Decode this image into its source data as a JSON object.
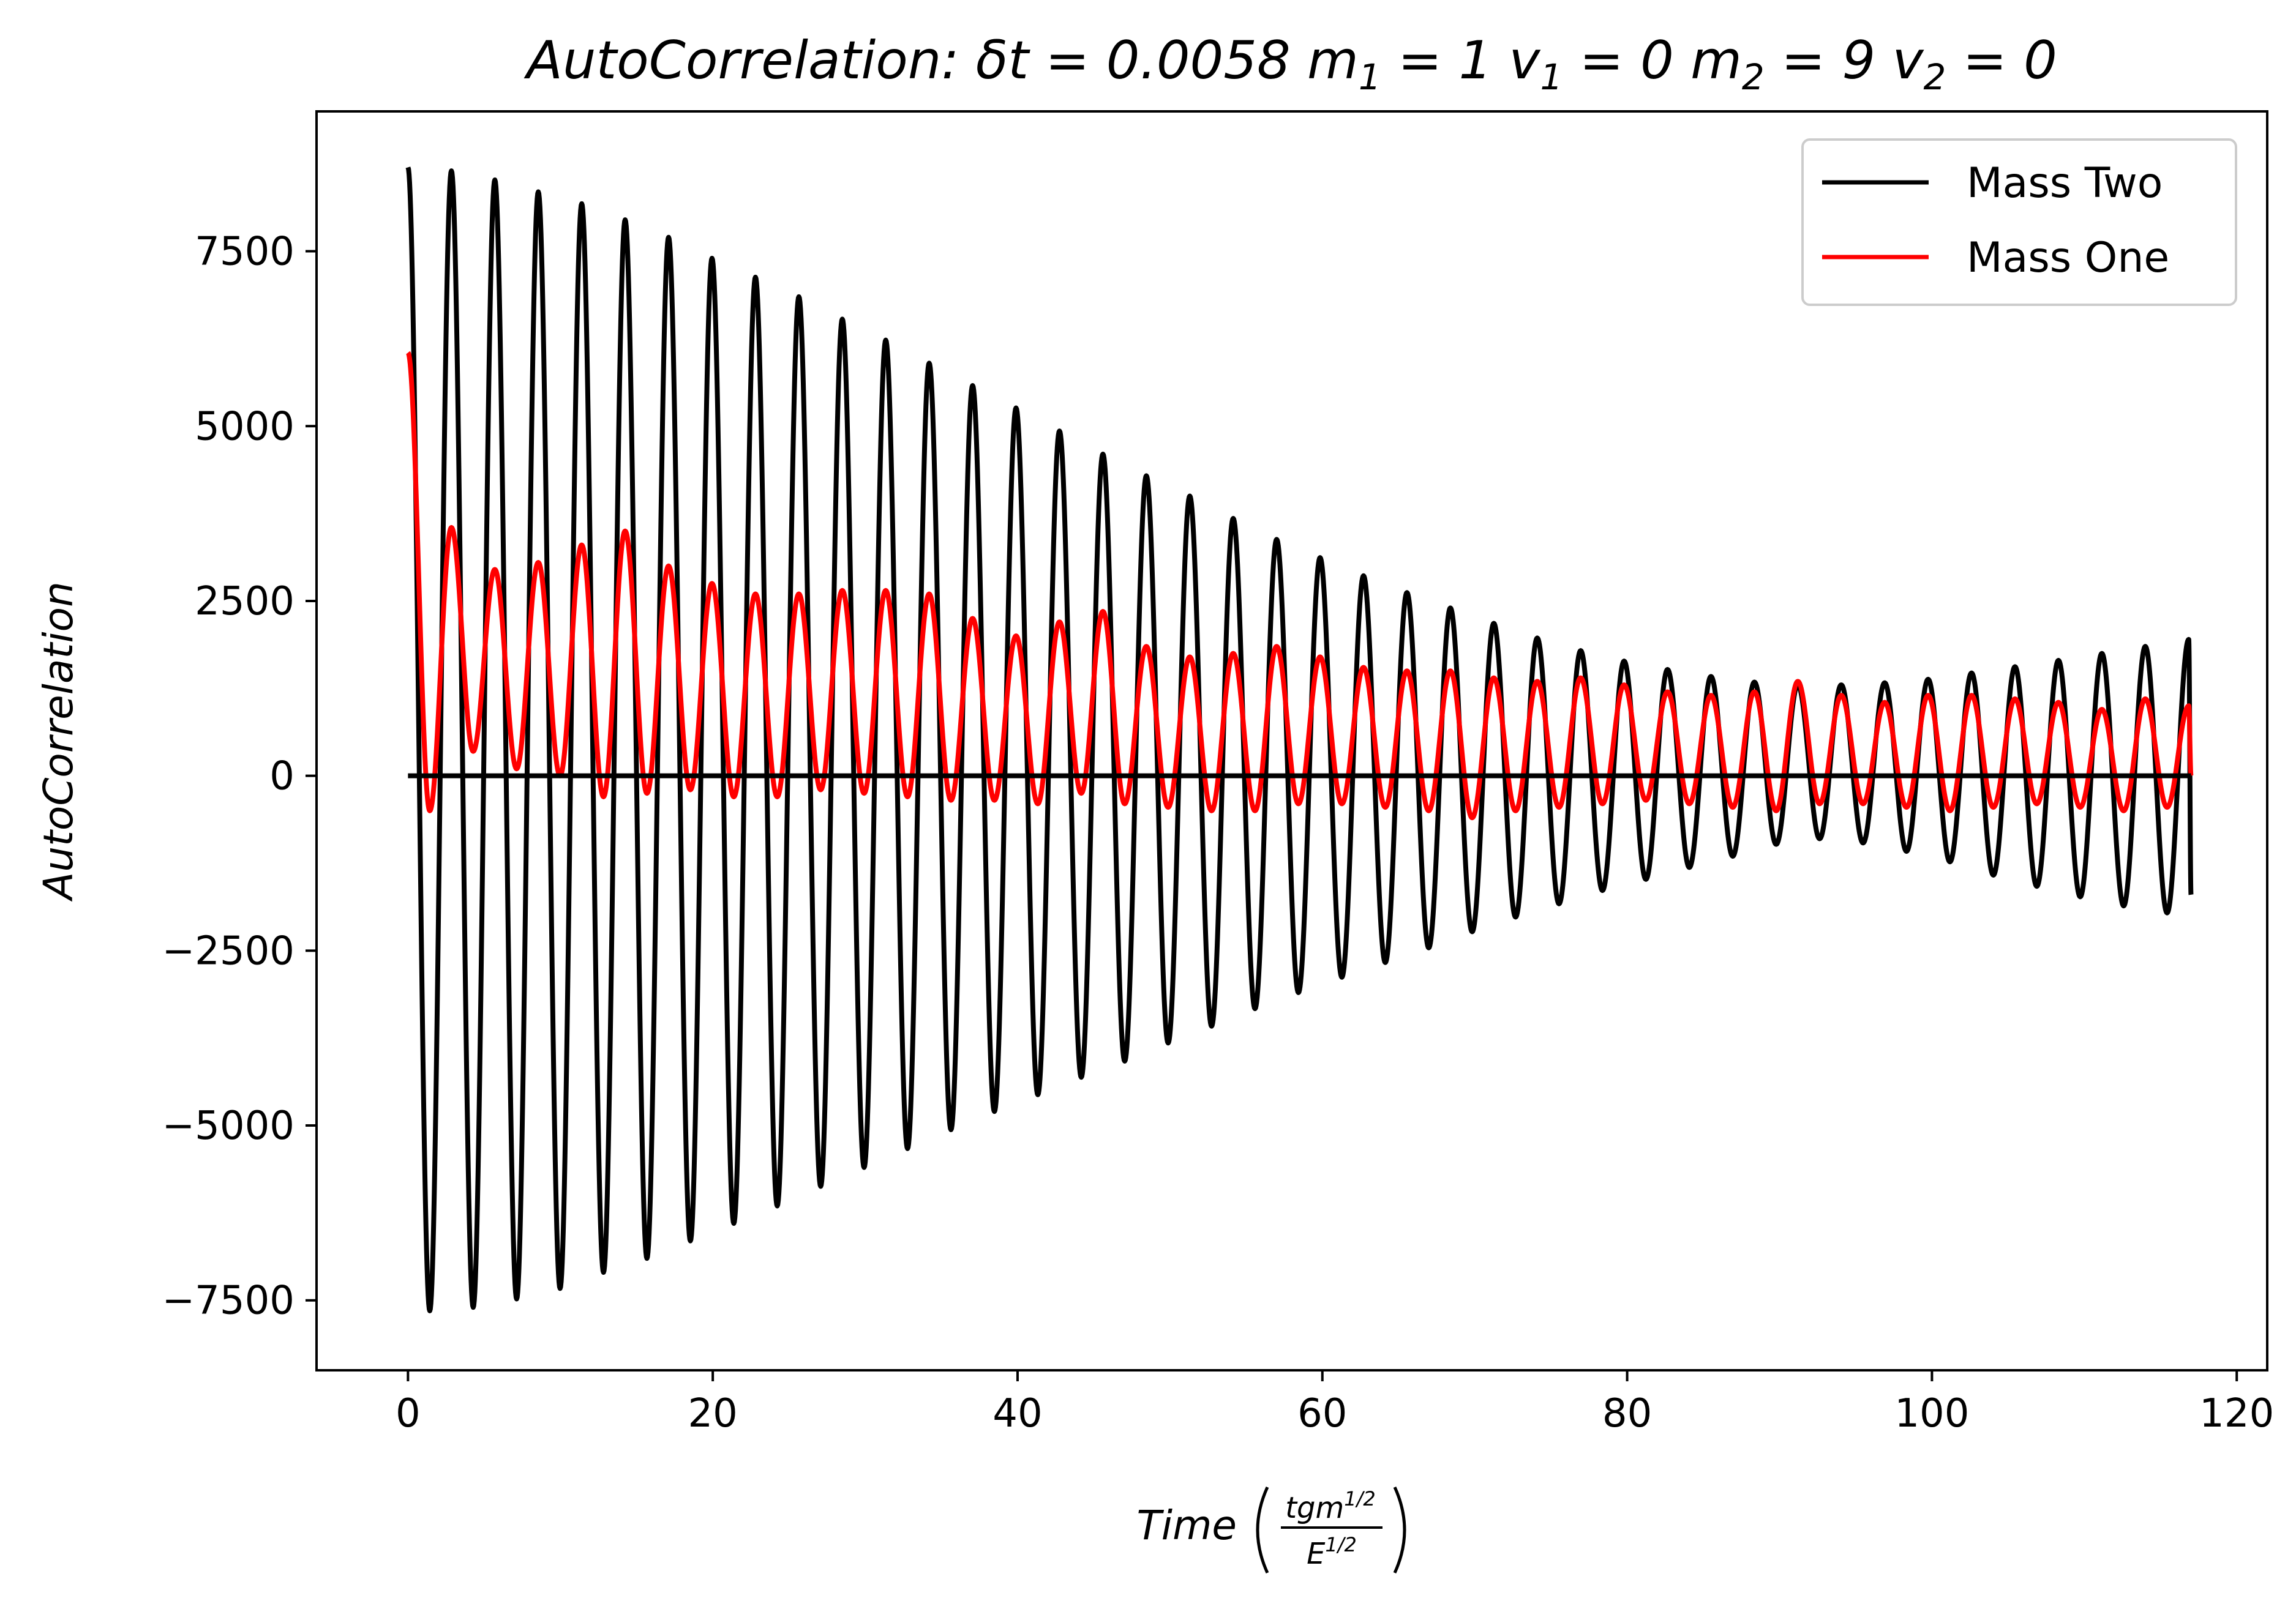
{
  "chart_data": {
    "type": "line",
    "title": {
      "prefix": "AutoCorrelation: δt = 0.0058 ",
      "m1_base": "m",
      "m1_sub": "1",
      "m1_rest": " = 1 ",
      "v1_base": "v",
      "v1_sub": "1",
      "v1_rest": " = 0 ",
      "m2_base": "m",
      "m2_sub": "2",
      "m2_rest": " = 9 ",
      "v2_base": "v",
      "v2_sub": "2",
      "v2_rest": " = 0"
    },
    "xlabel": {
      "text": "Time",
      "numerator_base": "tgm",
      "numerator_sup": "1/2",
      "denominator_base": "E",
      "denominator_sup": "1/2"
    },
    "ylabel": "AutoCorrelation",
    "xlim": [
      -6,
      122
    ],
    "ylim": [
      -8500,
      9500
    ],
    "x_ticks": [
      0,
      20,
      40,
      60,
      80,
      100,
      120
    ],
    "y_ticks": [
      -7500,
      -5000,
      -2500,
      0,
      2500,
      5000,
      7500
    ],
    "x_tick_labels": [
      "0",
      "20",
      "40",
      "60",
      "80",
      "100",
      "120"
    ],
    "y_tick_labels": [
      "−7500",
      "−5000",
      "−2500",
      "0",
      "2500",
      "5000",
      "7500"
    ],
    "grid": false,
    "legend_position": "top-right",
    "reference_line": {
      "y": 0,
      "x_range": [
        0,
        117
      ],
      "color": "#000000"
    },
    "series": [
      {
        "name": "Mass Two",
        "color": "#000000",
        "x_range": [
          0,
          117
        ],
        "period": 2.85,
        "peaks": [
          [
            0,
            8700
          ],
          [
            2.85,
            8650
          ],
          [
            5.7,
            8520
          ],
          [
            8.55,
            8350
          ],
          [
            11.4,
            8180
          ],
          [
            14.25,
            7950
          ],
          [
            17.1,
            7700
          ],
          [
            19.95,
            7400
          ],
          [
            22.8,
            7130
          ],
          [
            25.65,
            6850
          ],
          [
            28.5,
            6530
          ],
          [
            31.35,
            6230
          ],
          [
            34.2,
            5900
          ],
          [
            37.05,
            5580
          ],
          [
            39.9,
            5260
          ],
          [
            42.75,
            4930
          ],
          [
            45.6,
            4600
          ],
          [
            48.45,
            4290
          ],
          [
            51.3,
            4000
          ],
          [
            54.15,
            3680
          ],
          [
            57.0,
            3380
          ],
          [
            59.85,
            3120
          ],
          [
            62.7,
            2860
          ],
          [
            65.55,
            2620
          ],
          [
            68.4,
            2400
          ],
          [
            71.25,
            2180
          ],
          [
            74.1,
            1970
          ],
          [
            76.95,
            1790
          ],
          [
            79.8,
            1640
          ],
          [
            82.65,
            1520
          ],
          [
            85.5,
            1420
          ],
          [
            88.35,
            1340
          ],
          [
            91.2,
            1300
          ],
          [
            94.05,
            1300
          ],
          [
            96.9,
            1330
          ],
          [
            99.75,
            1380
          ],
          [
            102.6,
            1470
          ],
          [
            105.45,
            1560
          ],
          [
            108.3,
            1650
          ],
          [
            111.15,
            1750
          ],
          [
            114.0,
            1850
          ],
          [
            116.85,
            1950
          ]
        ],
        "troughs": [
          [
            1.43,
            -7650
          ],
          [
            4.28,
            -7600
          ],
          [
            7.13,
            -7480
          ],
          [
            9.98,
            -7330
          ],
          [
            12.83,
            -7100
          ],
          [
            15.68,
            -6900
          ],
          [
            18.53,
            -6650
          ],
          [
            21.38,
            -6400
          ],
          [
            24.23,
            -6150
          ],
          [
            27.08,
            -5870
          ],
          [
            29.93,
            -5600
          ],
          [
            32.78,
            -5330
          ],
          [
            35.63,
            -5060
          ],
          [
            38.48,
            -4800
          ],
          [
            41.33,
            -4560
          ],
          [
            44.18,
            -4310
          ],
          [
            47.03,
            -4080
          ],
          [
            49.88,
            -3820
          ],
          [
            52.73,
            -3580
          ],
          [
            55.58,
            -3330
          ],
          [
            58.43,
            -3100
          ],
          [
            61.28,
            -2880
          ],
          [
            64.13,
            -2670
          ],
          [
            66.98,
            -2460
          ],
          [
            69.83,
            -2230
          ],
          [
            72.68,
            -2020
          ],
          [
            75.53,
            -1830
          ],
          [
            78.38,
            -1640
          ],
          [
            81.23,
            -1480
          ],
          [
            84.08,
            -1310
          ],
          [
            86.93,
            -1150
          ],
          [
            89.78,
            -980
          ],
          [
            92.63,
            -900
          ],
          [
            95.48,
            -960
          ],
          [
            98.33,
            -1080
          ],
          [
            101.18,
            -1230
          ],
          [
            104.03,
            -1420
          ],
          [
            106.88,
            -1580
          ],
          [
            109.73,
            -1730
          ],
          [
            112.58,
            -1860
          ],
          [
            115.43,
            -1960
          ]
        ],
        "end_value": -1700
      },
      {
        "name": "Mass One",
        "color": "#ff0000",
        "x_range": [
          0,
          117
        ],
        "period": 2.85,
        "peaks": [
          [
            0,
            6050
          ],
          [
            2.85,
            3550
          ],
          [
            5.7,
            2950
          ],
          [
            8.55,
            3050
          ],
          [
            11.4,
            3300
          ],
          [
            14.25,
            3500
          ],
          [
            17.1,
            3000
          ],
          [
            19.95,
            2750
          ],
          [
            22.8,
            2600
          ],
          [
            25.65,
            2600
          ],
          [
            28.5,
            2650
          ],
          [
            31.35,
            2650
          ],
          [
            34.2,
            2600
          ],
          [
            37.05,
            2250
          ],
          [
            39.9,
            2000
          ],
          [
            42.75,
            2200
          ],
          [
            45.6,
            2350
          ],
          [
            48.45,
            1850
          ],
          [
            51.3,
            1700
          ],
          [
            54.15,
            1750
          ],
          [
            57.0,
            1850
          ],
          [
            59.85,
            1700
          ],
          [
            62.7,
            1550
          ],
          [
            65.55,
            1500
          ],
          [
            68.4,
            1500
          ],
          [
            71.25,
            1400
          ],
          [
            74.1,
            1350
          ],
          [
            76.95,
            1400
          ],
          [
            79.8,
            1300
          ],
          [
            82.65,
            1200
          ],
          [
            85.5,
            1150
          ],
          [
            88.35,
            1200
          ],
          [
            91.2,
            1350
          ],
          [
            94.05,
            1150
          ],
          [
            96.9,
            1050
          ],
          [
            99.75,
            1150
          ],
          [
            102.6,
            1150
          ],
          [
            105.45,
            1100
          ],
          [
            108.3,
            1050
          ],
          [
            111.15,
            950
          ],
          [
            114.0,
            1100
          ],
          [
            116.85,
            1000
          ]
        ],
        "troughs": [
          [
            1.43,
            -500
          ],
          [
            4.28,
            350
          ],
          [
            7.13,
            100
          ],
          [
            9.98,
            0
          ],
          [
            12.83,
            -300
          ],
          [
            15.68,
            -250
          ],
          [
            18.53,
            -200
          ],
          [
            21.38,
            -300
          ],
          [
            24.23,
            -300
          ],
          [
            27.08,
            -200
          ],
          [
            29.93,
            -250
          ],
          [
            32.78,
            -300
          ],
          [
            35.63,
            -350
          ],
          [
            38.48,
            -350
          ],
          [
            41.33,
            -400
          ],
          [
            44.18,
            -250
          ],
          [
            47.03,
            -400
          ],
          [
            49.88,
            -450
          ],
          [
            52.73,
            -500
          ],
          [
            55.58,
            -500
          ],
          [
            58.43,
            -400
          ],
          [
            61.28,
            -400
          ],
          [
            64.13,
            -450
          ],
          [
            66.98,
            -500
          ],
          [
            69.83,
            -600
          ],
          [
            72.68,
            -500
          ],
          [
            75.53,
            -450
          ],
          [
            78.38,
            -400
          ],
          [
            81.23,
            -350
          ],
          [
            84.08,
            -400
          ],
          [
            86.93,
            -450
          ],
          [
            89.78,
            -500
          ],
          [
            92.63,
            -400
          ],
          [
            95.48,
            -400
          ],
          [
            98.33,
            -450
          ],
          [
            101.18,
            -500
          ],
          [
            104.03,
            -450
          ],
          [
            106.88,
            -400
          ],
          [
            109.73,
            -450
          ],
          [
            112.58,
            -500
          ],
          [
            115.43,
            -450
          ]
        ],
        "end_value": 0
      }
    ],
    "legend": [
      {
        "label": "Mass Two",
        "color": "#000000"
      },
      {
        "label": "Mass One",
        "color": "#ff0000"
      }
    ]
  }
}
